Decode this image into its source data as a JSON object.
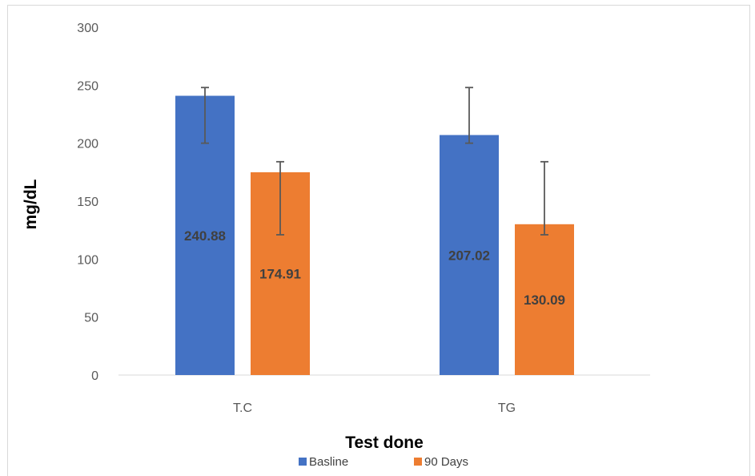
{
  "chart_data": {
    "type": "bar",
    "categories": [
      "T.C",
      "TG"
    ],
    "series": [
      {
        "name": "Basline",
        "values": [
          240.88,
          207.02
        ],
        "color": "#4472C4",
        "error_low": [
          200,
          200
        ],
        "error_high": [
          248,
          248
        ]
      },
      {
        "name": "90 Days",
        "values": [
          174.91,
          130.09
        ],
        "color": "#ED7D31",
        "error_low": [
          121,
          121
        ],
        "error_high": [
          184,
          184
        ]
      }
    ],
    "data_labels": [
      [
        "240.88",
        "207.02"
      ],
      [
        "174.91",
        "130.09"
      ]
    ],
    "title": "",
    "xlabel": "Test done",
    "ylabel": "mg/dL",
    "ylim": [
      0,
      300
    ],
    "yticks": [
      "0",
      "50",
      "100",
      "150",
      "200",
      "250",
      "300"
    ],
    "grid": false,
    "legend_position": "bottom"
  }
}
